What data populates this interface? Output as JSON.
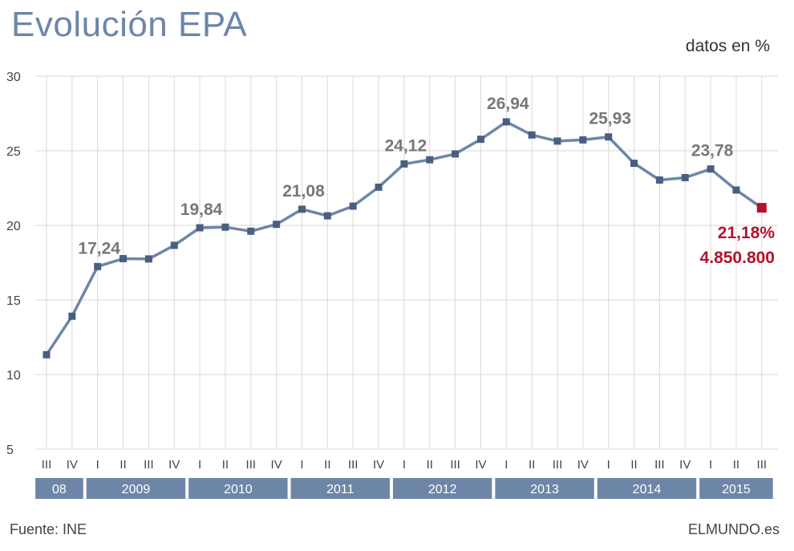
{
  "header": {
    "title": "Evolución EPA",
    "units": "datos en %"
  },
  "footer": {
    "source": "Fuente: INE",
    "brand": "ELMUNDO.es"
  },
  "colors": {
    "line": "#6d86a8",
    "marker": "#4a5f7f",
    "highlight": "#b3142c",
    "year_band": "#6d86a8",
    "grid": "#d9d9d9"
  },
  "chart_data": {
    "type": "line",
    "ylim": [
      5,
      30
    ],
    "yticks": [
      5,
      10,
      15,
      20,
      25,
      30
    ],
    "grid": true,
    "quarters": [
      "III",
      "IV",
      "I",
      "II",
      "III",
      "IV",
      "I",
      "II",
      "III",
      "IV",
      "I",
      "II",
      "III",
      "IV",
      "I",
      "II",
      "III",
      "IV",
      "I",
      "II",
      "III",
      "IV",
      "I",
      "II",
      "III",
      "IV",
      "I",
      "II",
      "III"
    ],
    "years": [
      {
        "label": "08",
        "start": 0,
        "end": 1
      },
      {
        "label": "2009",
        "start": 2,
        "end": 5
      },
      {
        "label": "2010",
        "start": 6,
        "end": 9
      },
      {
        "label": "2011",
        "start": 10,
        "end": 13
      },
      {
        "label": "2012",
        "start": 14,
        "end": 17
      },
      {
        "label": "2013",
        "start": 18,
        "end": 21
      },
      {
        "label": "2014",
        "start": 22,
        "end": 25
      },
      {
        "label": "2015",
        "start": 26,
        "end": 28
      }
    ],
    "values": [
      11.33,
      13.91,
      17.24,
      17.77,
      17.75,
      18.66,
      19.84,
      19.88,
      19.61,
      20.07,
      21.08,
      20.64,
      21.29,
      22.56,
      24.12,
      24.4,
      24.79,
      25.77,
      26.94,
      26.06,
      25.65,
      25.73,
      25.93,
      24.16,
      23.04,
      23.2,
      23.78,
      22.37,
      21.18
    ],
    "annotations": [
      {
        "index": 2,
        "text": "17,24"
      },
      {
        "index": 6,
        "text": "19,84"
      },
      {
        "index": 10,
        "text": "21,08"
      },
      {
        "index": 14,
        "text": "24,12"
      },
      {
        "index": 18,
        "text": "26,94"
      },
      {
        "index": 22,
        "text": "25,93"
      },
      {
        "index": 26,
        "text": "23,78"
      }
    ],
    "last_point": {
      "percent": "21,18%",
      "count": "4.850.800"
    }
  }
}
